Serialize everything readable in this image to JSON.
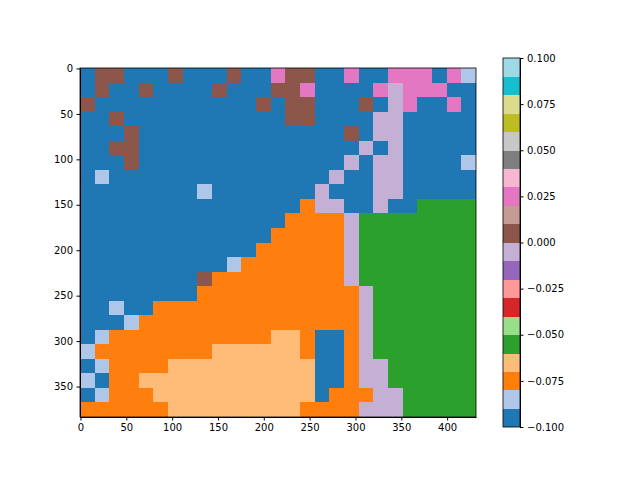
{
  "chart_data": {
    "type": "heatmap",
    "xlim": [
      -0.5,
      431.5
    ],
    "ylim": [
      383.5,
      -0.5
    ],
    "xticks": [
      0,
      50,
      100,
      150,
      200,
      250,
      300,
      350,
      400
    ],
    "yticks": [
      0,
      50,
      100,
      150,
      200,
      250,
      300,
      350
    ],
    "x_edges": [
      -0.5,
      15.5,
      31.5,
      47.5,
      63.5,
      79.5,
      95.5,
      111.5,
      127.5,
      143.5,
      159.5,
      175.5,
      191.5,
      207.5,
      223.5,
      239.5,
      255.5,
      271.5,
      287.5,
      303.5,
      319.5,
      335.5,
      351.5,
      367.5,
      383.5,
      399.5,
      415.5,
      431.5
    ],
    "y_edges": [
      -0.5,
      15.5,
      31.5,
      47.5,
      63.5,
      79.5,
      95.5,
      111.5,
      127.5,
      143.5,
      159.5,
      175.5,
      191.5,
      207.5,
      223.5,
      239.5,
      255.5,
      271.5,
      287.5,
      303.5,
      319.5,
      335.5,
      351.5,
      367.5,
      383.5
    ],
    "zlim": [
      -0.1,
      0.1
    ],
    "zticks": [
      {
        "value": -0.1,
        "label": "−0.100"
      },
      {
        "value": -0.075,
        "label": "−0.075"
      },
      {
        "value": -0.05,
        "label": "−0.050"
      },
      {
        "value": -0.025,
        "label": "−0.025"
      },
      {
        "value": 0,
        "label": "0.000"
      },
      0.025,
      {
        "value": 0.05,
        "label": "0.050"
      },
      0.075,
      {
        "value": 0.1,
        "label": "0.100"
      }
    ],
    "colors": [
      "#1f77b4",
      "#aec7e8",
      "#ff7f0e",
      "#ffbb78",
      "#2ca02c",
      "#98df8a",
      "#d62728",
      "#ff9896",
      "#9467bd",
      "#c5b0d5",
      "#8c564b",
      "#c49c94",
      "#e377c2",
      "#f7b6d2",
      "#7f7f7f",
      "#c7c7c7",
      "#bcbd22",
      "#dbdb8d",
      "#17becf",
      "#9edae5"
    ],
    "z": [
      [
        -0.095,
        0.005,
        0.005,
        -0.095,
        -0.095,
        -0.095,
        0.005,
        -0.095,
        -0.095,
        -0.095,
        0.005,
        -0.095,
        -0.095,
        0.025,
        0.005,
        0.005,
        -0.095,
        -0.095,
        0.025,
        -0.095,
        -0.095,
        0.025,
        0.025,
        0.025,
        -0.095,
        0.025,
        -0.085
      ],
      [
        -0.095,
        0.005,
        -0.095,
        -0.095,
        0.005,
        -0.095,
        -0.095,
        -0.095,
        -0.095,
        0.005,
        -0.095,
        -0.095,
        -0.095,
        0.005,
        0.005,
        0.025,
        -0.095,
        -0.095,
        -0.095,
        -0.095,
        0.025,
        -0.005,
        0.025,
        0.025,
        0.025,
        -0.095,
        -0.095
      ],
      [
        0.005,
        -0.095,
        -0.095,
        -0.095,
        -0.095,
        -0.095,
        -0.095,
        -0.095,
        -0.095,
        -0.095,
        -0.095,
        -0.095,
        0.005,
        -0.095,
        0.005,
        0.005,
        -0.095,
        -0.095,
        -0.095,
        0.005,
        -0.095,
        -0.005,
        0.025,
        -0.095,
        -0.095,
        0.025,
        -0.095
      ],
      [
        -0.095,
        -0.095,
        0.005,
        -0.095,
        -0.095,
        -0.095,
        -0.095,
        -0.095,
        -0.095,
        -0.095,
        -0.095,
        -0.095,
        -0.095,
        -0.095,
        0.005,
        0.005,
        -0.095,
        -0.095,
        -0.095,
        -0.095,
        -0.005,
        -0.005,
        -0.095,
        -0.095,
        -0.095,
        -0.095,
        -0.095
      ],
      [
        -0.095,
        -0.095,
        -0.095,
        0.005,
        -0.095,
        -0.095,
        -0.095,
        -0.095,
        -0.095,
        -0.095,
        -0.095,
        -0.095,
        -0.095,
        -0.095,
        -0.095,
        -0.095,
        -0.095,
        -0.095,
        0.005,
        -0.095,
        -0.005,
        -0.005,
        -0.095,
        -0.095,
        -0.095,
        -0.095,
        -0.095
      ],
      [
        -0.095,
        -0.095,
        0.005,
        0.005,
        -0.095,
        -0.095,
        -0.095,
        -0.095,
        -0.095,
        -0.095,
        -0.095,
        -0.095,
        -0.095,
        -0.095,
        -0.095,
        -0.095,
        -0.095,
        -0.095,
        -0.095,
        -0.005,
        -0.095,
        -0.005,
        -0.095,
        -0.095,
        -0.095,
        -0.095,
        -0.095
      ],
      [
        -0.095,
        -0.095,
        -0.095,
        0.005,
        -0.095,
        -0.095,
        -0.095,
        -0.095,
        -0.095,
        -0.095,
        -0.095,
        -0.095,
        -0.095,
        -0.095,
        -0.095,
        -0.095,
        -0.095,
        -0.095,
        -0.005,
        -0.095,
        -0.005,
        -0.005,
        -0.095,
        -0.095,
        -0.095,
        -0.095,
        -0.085
      ],
      [
        -0.095,
        -0.085,
        -0.095,
        -0.095,
        -0.095,
        -0.095,
        -0.095,
        -0.095,
        -0.095,
        -0.095,
        -0.095,
        -0.095,
        -0.095,
        -0.095,
        -0.095,
        -0.095,
        -0.095,
        -0.005,
        -0.095,
        -0.095,
        -0.005,
        -0.005,
        -0.095,
        -0.095,
        -0.095,
        -0.095,
        -0.095
      ],
      [
        -0.095,
        -0.095,
        -0.095,
        -0.095,
        -0.095,
        -0.095,
        -0.095,
        -0.095,
        -0.085,
        -0.095,
        -0.095,
        -0.095,
        -0.095,
        -0.095,
        -0.095,
        -0.095,
        -0.005,
        -0.095,
        -0.095,
        -0.095,
        -0.005,
        -0.005,
        -0.095,
        -0.095,
        -0.095,
        -0.095,
        -0.095
      ],
      [
        -0.095,
        -0.095,
        -0.095,
        -0.095,
        -0.095,
        -0.095,
        -0.095,
        -0.095,
        -0.095,
        -0.095,
        -0.095,
        -0.095,
        -0.095,
        -0.095,
        -0.095,
        -0.075,
        -0.005,
        -0.005,
        -0.095,
        -0.095,
        -0.005,
        -0.095,
        -0.095,
        -0.055,
        -0.055,
        -0.055,
        -0.055
      ],
      [
        -0.095,
        -0.095,
        -0.095,
        -0.095,
        -0.095,
        -0.095,
        -0.095,
        -0.095,
        -0.095,
        -0.095,
        -0.095,
        -0.095,
        -0.095,
        -0.095,
        -0.075,
        -0.075,
        -0.075,
        -0.075,
        -0.005,
        -0.055,
        -0.055,
        -0.055,
        -0.055,
        -0.055,
        -0.055,
        -0.055,
        -0.055
      ],
      [
        -0.095,
        -0.095,
        -0.095,
        -0.095,
        -0.095,
        -0.095,
        -0.095,
        -0.095,
        -0.095,
        -0.095,
        -0.095,
        -0.095,
        -0.095,
        -0.075,
        -0.075,
        -0.075,
        -0.075,
        -0.075,
        -0.005,
        -0.055,
        -0.055,
        -0.055,
        -0.055,
        -0.055,
        -0.055,
        -0.055,
        -0.055
      ],
      [
        -0.095,
        -0.095,
        -0.095,
        -0.095,
        -0.095,
        -0.095,
        -0.095,
        -0.095,
        -0.095,
        -0.095,
        -0.095,
        -0.095,
        -0.075,
        -0.075,
        -0.075,
        -0.075,
        -0.075,
        -0.075,
        -0.005,
        -0.055,
        -0.055,
        -0.055,
        -0.055,
        -0.055,
        -0.055,
        -0.055,
        -0.055
      ],
      [
        -0.095,
        -0.095,
        -0.095,
        -0.095,
        -0.095,
        -0.095,
        -0.095,
        -0.095,
        -0.095,
        -0.095,
        -0.085,
        -0.075,
        -0.075,
        -0.075,
        -0.075,
        -0.075,
        -0.075,
        -0.075,
        -0.005,
        -0.055,
        -0.055,
        -0.055,
        -0.055,
        -0.055,
        -0.055,
        -0.055,
        -0.055
      ],
      [
        -0.095,
        -0.095,
        -0.095,
        -0.095,
        -0.095,
        -0.095,
        -0.095,
        -0.095,
        0.005,
        -0.075,
        -0.075,
        -0.075,
        -0.075,
        -0.075,
        -0.075,
        -0.075,
        -0.075,
        -0.075,
        -0.005,
        -0.055,
        -0.055,
        -0.055,
        -0.055,
        -0.055,
        -0.055,
        -0.055,
        -0.055
      ],
      [
        -0.095,
        -0.095,
        -0.095,
        -0.095,
        -0.095,
        -0.095,
        -0.095,
        -0.095,
        -0.075,
        -0.075,
        -0.075,
        -0.075,
        -0.075,
        -0.075,
        -0.075,
        -0.075,
        -0.075,
        -0.075,
        -0.075,
        -0.005,
        -0.055,
        -0.055,
        -0.055,
        -0.055,
        -0.055,
        -0.055,
        -0.055
      ],
      [
        -0.095,
        -0.095,
        -0.085,
        -0.095,
        -0.095,
        -0.075,
        -0.075,
        -0.075,
        -0.075,
        -0.075,
        -0.075,
        -0.075,
        -0.075,
        -0.075,
        -0.075,
        -0.075,
        -0.075,
        -0.075,
        -0.075,
        -0.005,
        -0.055,
        -0.055,
        -0.055,
        -0.055,
        -0.055,
        -0.055,
        -0.055
      ],
      [
        -0.095,
        -0.095,
        -0.095,
        -0.085,
        -0.075,
        -0.075,
        -0.075,
        -0.075,
        -0.075,
        -0.075,
        -0.075,
        -0.075,
        -0.075,
        -0.075,
        -0.075,
        -0.075,
        -0.075,
        -0.075,
        -0.075,
        -0.005,
        -0.055,
        -0.055,
        -0.055,
        -0.055,
        -0.055,
        -0.055,
        -0.055
      ],
      [
        -0.095,
        -0.085,
        -0.075,
        -0.075,
        -0.075,
        -0.075,
        -0.075,
        -0.075,
        -0.075,
        -0.075,
        -0.075,
        -0.075,
        -0.075,
        -0.065,
        -0.065,
        -0.075,
        -0.095,
        -0.095,
        -0.075,
        -0.005,
        -0.055,
        -0.055,
        -0.055,
        -0.055,
        -0.055,
        -0.055,
        -0.055
      ],
      [
        -0.085,
        -0.075,
        -0.075,
        -0.075,
        -0.075,
        -0.075,
        -0.075,
        -0.075,
        -0.075,
        -0.065,
        -0.065,
        -0.065,
        -0.065,
        -0.065,
        -0.065,
        -0.075,
        -0.095,
        -0.095,
        -0.075,
        -0.005,
        -0.055,
        -0.055,
        -0.055,
        -0.055,
        -0.055,
        -0.055,
        -0.055
      ],
      [
        -0.095,
        -0.085,
        -0.075,
        -0.075,
        -0.075,
        -0.075,
        -0.065,
        -0.065,
        -0.065,
        -0.065,
        -0.065,
        -0.065,
        -0.065,
        -0.065,
        -0.065,
        -0.065,
        -0.095,
        -0.095,
        -0.075,
        -0.005,
        -0.005,
        -0.055,
        -0.055,
        -0.055,
        -0.055,
        -0.055,
        -0.055
      ],
      [
        -0.085,
        -0.095,
        -0.075,
        -0.075,
        -0.065,
        -0.065,
        -0.065,
        -0.065,
        -0.065,
        -0.065,
        -0.065,
        -0.065,
        -0.065,
        -0.065,
        -0.065,
        -0.065,
        -0.095,
        -0.095,
        -0.075,
        -0.005,
        -0.005,
        -0.055,
        -0.055,
        -0.055,
        -0.055,
        -0.055,
        -0.055
      ],
      [
        -0.095,
        -0.085,
        -0.075,
        -0.075,
        -0.075,
        -0.065,
        -0.065,
        -0.065,
        -0.065,
        -0.065,
        -0.065,
        -0.065,
        -0.065,
        -0.065,
        -0.065,
        -0.065,
        -0.095,
        -0.075,
        -0.075,
        -0.075,
        -0.005,
        -0.005,
        -0.055,
        -0.055,
        -0.055,
        -0.055,
        -0.055
      ],
      [
        -0.075,
        -0.075,
        -0.075,
        -0.075,
        -0.075,
        -0.075,
        -0.065,
        -0.065,
        -0.065,
        -0.065,
        -0.065,
        -0.065,
        -0.065,
        -0.065,
        -0.065,
        -0.075,
        -0.075,
        -0.075,
        -0.075,
        -0.005,
        -0.005,
        -0.005,
        -0.055,
        -0.055,
        -0.055,
        -0.055,
        -0.055
      ]
    ]
  }
}
